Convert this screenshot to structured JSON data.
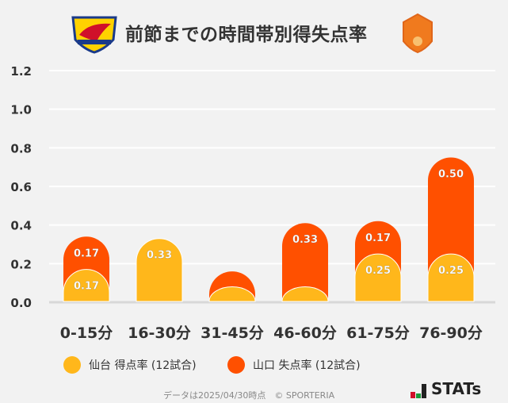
{
  "title": "前節までの時間帯別得失点率",
  "logos": {
    "home": "VEGALTA",
    "away": "RENOFA"
  },
  "chart_data": {
    "type": "bar",
    "stacked": true,
    "categories": [
      "0-15分",
      "16-30分",
      "31-45分",
      "46-60分",
      "61-75分",
      "76-90分"
    ],
    "series": [
      {
        "name": "仙台 得点率 (12試合)",
        "color": "#FFB71B",
        "values": [
          0.17,
          0.33,
          0.08,
          0.08,
          0.25,
          0.25
        ]
      },
      {
        "name": "山口 失点率 (12試合)",
        "color": "#FF5000",
        "values": [
          0.17,
          0,
          0.08,
          0.33,
          0.17,
          0.5
        ]
      }
    ],
    "ylim": [
      0,
      1.2
    ],
    "yticks": [
      "0.0",
      "0.2",
      "0.4",
      "0.6",
      "0.8",
      "1.0",
      "1.2"
    ],
    "grid": true,
    "legend": "bottom"
  },
  "footer": {
    "note": "データは2025/04/30時点　© SPORTERIA",
    "brand": "STATs"
  }
}
